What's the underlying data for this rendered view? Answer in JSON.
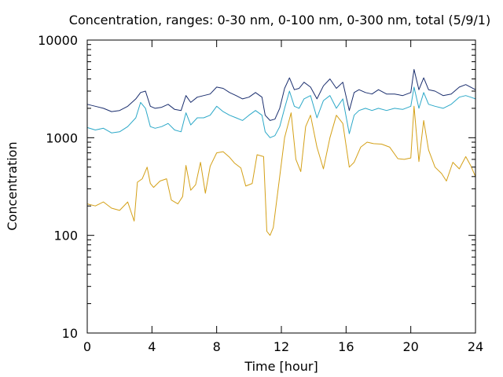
{
  "chart_data": {
    "type": "line",
    "title": "Concentration, ranges: 0-30 nm, 0-100 nm, 0-300 nm, total (5/9/1)",
    "xlabel": "Time [hour]",
    "ylabel": "Concentration",
    "xlim": [
      0,
      24
    ],
    "ylim": [
      10,
      10000
    ],
    "yscale": "log",
    "x_ticks": [
      0,
      4,
      8,
      12,
      16,
      20,
      24
    ],
    "y_ticks": [
      10,
      100,
      1000,
      10000
    ],
    "x_tick_labels": [
      "0",
      "4",
      "8",
      "12",
      "16",
      "20",
      "24"
    ],
    "y_tick_labels": [
      "10",
      "100",
      "1000",
      "10000"
    ],
    "grid": false,
    "legend": "none",
    "series": [
      {
        "color": "#d4a017",
        "x": [
          0,
          0.5,
          1,
          1.5,
          2,
          2.5,
          2.9,
          3.1,
          3.4,
          3.7,
          3.9,
          4.1,
          4.5,
          4.9,
          5.2,
          5.6,
          5.9,
          6.1,
          6.4,
          6.7,
          7.0,
          7.3,
          7.6,
          8.0,
          8.4,
          8.8,
          9.1,
          9.5,
          9.8,
          10.2,
          10.5,
          10.9,
          11.1,
          11.3,
          11.5,
          11.9,
          12.2,
          12.6,
          12.9,
          13.2,
          13.5,
          13.8,
          14.2,
          14.6,
          15.0,
          15.4,
          15.8,
          16.2,
          16.5,
          16.9,
          17.3,
          17.7,
          18.2,
          18.7,
          19.2,
          19.6,
          20.0,
          20.2,
          20.5,
          20.8,
          21.1,
          21.5,
          21.9,
          22.2,
          22.6,
          23.0,
          23.4,
          23.7,
          24
        ],
        "values": [
          210,
          200,
          220,
          190,
          180,
          220,
          140,
          350,
          380,
          500,
          340,
          310,
          360,
          380,
          230,
          210,
          250,
          520,
          290,
          330,
          560,
          270,
          510,
          700,
          720,
          630,
          550,
          490,
          320,
          340,
          670,
          640,
          110,
          100,
          120,
          400,
          1000,
          1800,
          600,
          450,
          1300,
          1700,
          800,
          480,
          1000,
          1700,
          1400,
          500,
          560,
          800,
          900,
          870,
          860,
          800,
          610,
          600,
          620,
          2100,
          570,
          1500,
          750,
          500,
          430,
          360,
          560,
          480,
          640,
          520,
          400
        ]
      },
      {
        "color": "#2ba8c8",
        "x": [
          0,
          0.5,
          1,
          1.5,
          2,
          2.5,
          3.0,
          3.3,
          3.6,
          3.9,
          4.2,
          4.6,
          5.0,
          5.4,
          5.8,
          6.1,
          6.4,
          6.8,
          7.2,
          7.6,
          8.0,
          8.4,
          8.8,
          9.2,
          9.6,
          10.0,
          10.4,
          10.8,
          11.0,
          11.3,
          11.6,
          11.9,
          12.2,
          12.5,
          12.8,
          13.1,
          13.4,
          13.8,
          14.2,
          14.6,
          15.0,
          15.4,
          15.8,
          16.2,
          16.5,
          16.8,
          17.2,
          17.6,
          18.0,
          18.5,
          19.0,
          19.5,
          20.0,
          20.2,
          20.5,
          20.8,
          21.1,
          21.5,
          22.0,
          22.5,
          23.0,
          23.4,
          23.7,
          24
        ],
        "values": [
          1270,
          1200,
          1250,
          1120,
          1150,
          1300,
          1600,
          2300,
          2000,
          1300,
          1250,
          1300,
          1400,
          1200,
          1150,
          1800,
          1350,
          1600,
          1600,
          1700,
          2100,
          1850,
          1700,
          1600,
          1500,
          1700,
          1900,
          1700,
          1150,
          1000,
          1050,
          1300,
          2000,
          3000,
          2100,
          2000,
          2500,
          2700,
          1600,
          2400,
          2700,
          2000,
          2500,
          1100,
          1700,
          1900,
          2000,
          1900,
          2000,
          1900,
          2000,
          1950,
          2100,
          3300,
          2000,
          2900,
          2200,
          2100,
          2000,
          2200,
          2600,
          2700,
          2600,
          2500
        ]
      },
      {
        "color": "#1a2e6e",
        "x": [
          0,
          0.5,
          1,
          1.5,
          2,
          2.5,
          3.0,
          3.3,
          3.6,
          3.9,
          4.2,
          4.6,
          5.0,
          5.4,
          5.8,
          6.1,
          6.4,
          6.8,
          7.2,
          7.6,
          8.0,
          8.4,
          8.8,
          9.2,
          9.6,
          10.0,
          10.4,
          10.8,
          11.0,
          11.3,
          11.6,
          11.9,
          12.2,
          12.5,
          12.8,
          13.1,
          13.4,
          13.8,
          14.2,
          14.6,
          15.0,
          15.4,
          15.8,
          16.2,
          16.5,
          16.8,
          17.2,
          17.6,
          18.0,
          18.5,
          19.0,
          19.5,
          20.0,
          20.2,
          20.5,
          20.8,
          21.1,
          21.5,
          22.0,
          22.5,
          23.0,
          23.4,
          23.7,
          24
        ],
        "values": [
          2200,
          2100,
          2000,
          1850,
          1900,
          2100,
          2500,
          2900,
          3000,
          2100,
          2000,
          2050,
          2200,
          1950,
          1900,
          2700,
          2300,
          2600,
          2700,
          2800,
          3300,
          3200,
          2900,
          2700,
          2500,
          2600,
          2900,
          2600,
          1700,
          1500,
          1550,
          2000,
          3200,
          4100,
          3100,
          3200,
          3700,
          3300,
          2500,
          3400,
          4000,
          3200,
          3700,
          1900,
          2900,
          3100,
          2900,
          2800,
          3100,
          2800,
          2800,
          2700,
          2900,
          5000,
          3100,
          4100,
          3100,
          3000,
          2700,
          2800,
          3300,
          3500,
          3300,
          3100
        ]
      }
    ]
  }
}
